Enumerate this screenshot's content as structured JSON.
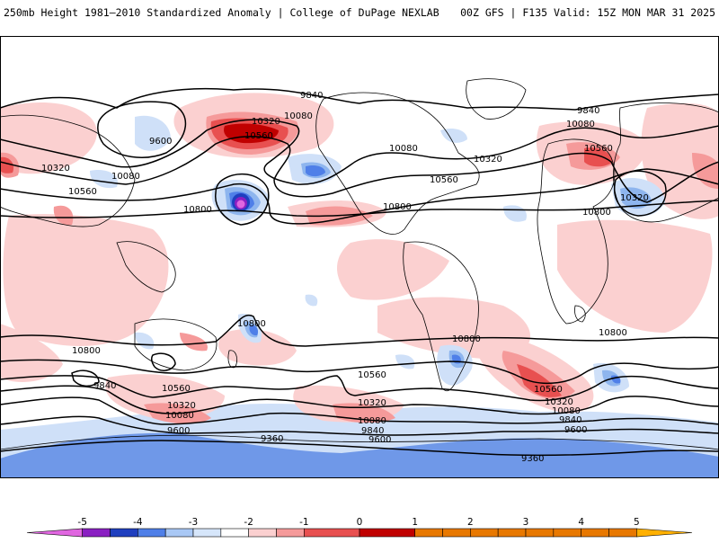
{
  "header": {
    "title": "250mb Height 1981–2010 Standardized Anomaly | College of DuPage NEXLAB",
    "run_info": "00Z GFS | F135 Valid: 15Z MON MAR 31 2025"
  },
  "contour_labels": [
    "9840",
    "9600",
    "10320",
    "10080",
    "10560",
    "10800",
    "10320",
    "10080",
    "10560",
    "10080",
    "10320",
    "10560",
    "10800",
    "9840",
    "10080",
    "10560",
    "10320",
    "10800",
    "10800",
    "10800",
    "10800",
    "10800",
    "10560",
    "10320",
    "10080",
    "9840",
    "9600",
    "9360",
    "10560",
    "10320",
    "10080",
    "9840",
    "9600",
    "10560",
    "10320",
    "10080",
    "9840",
    "9600",
    "9360"
  ],
  "colorbar": {
    "ticks": [
      "-5",
      "-4",
      "-3",
      "-2",
      "-1",
      "0",
      "1",
      "2",
      "3",
      "4",
      "5"
    ],
    "colors": [
      "#e066e0",
      "#8a1fc2",
      "#1f3fbf",
      "#4f7fe8",
      "#a9c8f5",
      "#d6e6fa",
      "#ffffff",
      "#fbd0d0",
      "#f59a9a",
      "#e85050",
      "#c00000",
      "#e87800",
      "#ffb000"
    ]
  },
  "map_colors": {
    "ocean": "#ffffff",
    "land_line": "#000000",
    "pos1": "#fbd0d0",
    "pos2": "#f59a9a",
    "pos3": "#e85050",
    "pos4": "#c00000",
    "neg1": "#cfe0f8",
    "neg2": "#8eb5ee",
    "neg3": "#4f7fe8",
    "neg4": "#1f3fbf",
    "neg5": "#8a1fc2",
    "neg6": "#e066e0"
  }
}
